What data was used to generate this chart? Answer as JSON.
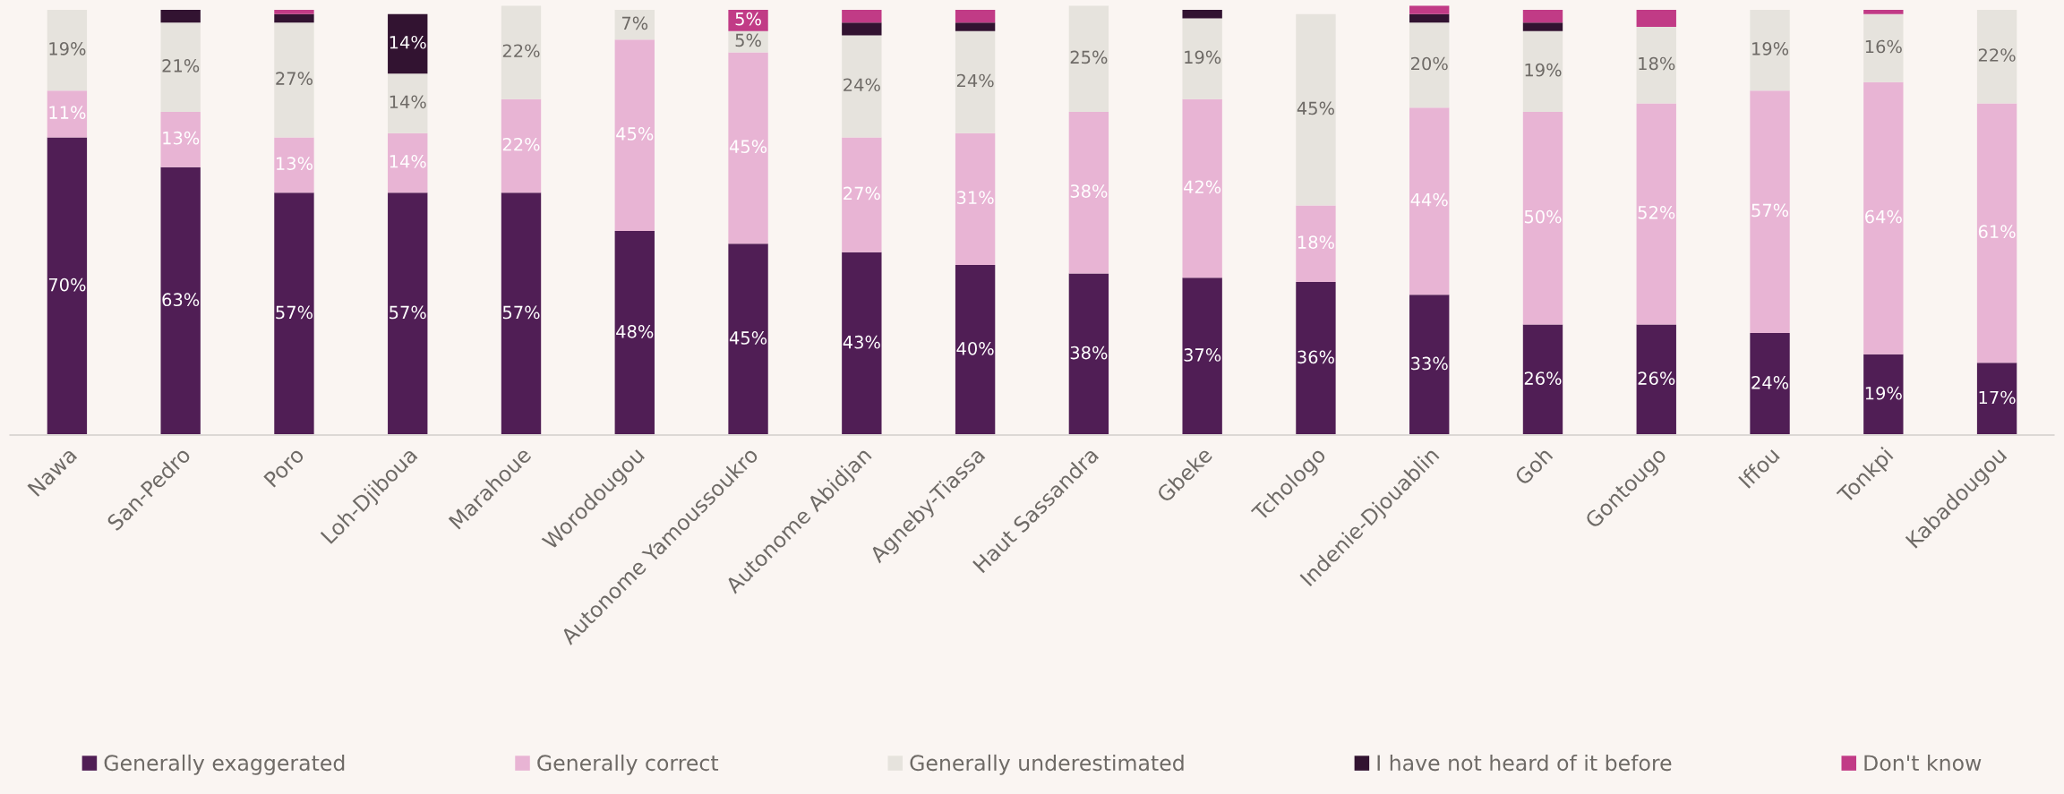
{
  "chart_data": {
    "type": "bar",
    "stacked": true,
    "legend": "bottom",
    "grid": false,
    "ylim": [
      0,
      101
    ],
    "categories": [
      "Nawa",
      "San-Pedro",
      "Poro",
      "Loh-Djiboua",
      "Marahoue",
      "Worodougou",
      "Autonome Yamoussoukro",
      "Autonome Abidjan",
      "Agneby-Tiassa",
      "Haut Sassandra",
      "Gbeke",
      "Tchologo",
      "Indenie-Djouablin",
      "Goh",
      "Gontougo",
      "Iffou",
      "Tonkpi",
      "Kabadougou"
    ],
    "series": [
      {
        "name": "Generally exaggerated",
        "color": "#501e55",
        "values": [
          70,
          63,
          57,
          57,
          57,
          48,
          45,
          43,
          40,
          38,
          37,
          36,
          33,
          26,
          26,
          24,
          19,
          17
        ],
        "value_labels": [
          "70%",
          "63%",
          "57%",
          "57%",
          "57%",
          "48%",
          "45%",
          "43%",
          "40%",
          "38%",
          "37%",
          "36%",
          "33%",
          "26%",
          "26%",
          "24%",
          "19%",
          "17%"
        ]
      },
      {
        "name": "Generally correct",
        "color": "#e8b4d4",
        "values": [
          11,
          13,
          13,
          14,
          22,
          45,
          45,
          27,
          31,
          38,
          42,
          18,
          44,
          50,
          52,
          57,
          64,
          61
        ],
        "value_labels": [
          "11%",
          "13%",
          "13%",
          "14%",
          "22%",
          "45%",
          "45%",
          "27%",
          "31%",
          "38%",
          "42%",
          "18%",
          "44%",
          "50%",
          "52%",
          "57%",
          "64%",
          "61%"
        ]
      },
      {
        "name": "Generally underestimated",
        "color": "#e6e3dd",
        "values": [
          19,
          21,
          27,
          14,
          22,
          7,
          5,
          24,
          24,
          25,
          19,
          45,
          20,
          19,
          18,
          19,
          16,
          22
        ],
        "value_labels": [
          "19%",
          "21%",
          "27%",
          "14%",
          "22%",
          "7%",
          "5%",
          "24%",
          "24%",
          "25%",
          "19%",
          "45%",
          "20%",
          "19%",
          "18%",
          "19%",
          "16%",
          "22%"
        ]
      },
      {
        "name": "I have not heard of it before",
        "color": "#321331",
        "values": [
          0,
          3,
          2,
          14,
          0,
          0,
          0,
          3,
          2,
          0,
          2,
          0,
          2,
          2,
          0,
          0,
          0,
          0
        ],
        "value_labels": [
          null,
          null,
          null,
          "14%",
          null,
          null,
          null,
          null,
          null,
          null,
          null,
          null,
          null,
          null,
          null,
          null,
          null,
          null
        ]
      },
      {
        "name": "Don't know",
        "color": "#c13b86",
        "values": [
          0,
          0,
          1,
          0,
          0,
          0,
          5,
          3,
          3,
          0,
          0,
          0,
          2,
          3,
          4,
          0,
          1,
          0
        ],
        "value_labels": [
          null,
          null,
          null,
          null,
          null,
          null,
          "5%",
          null,
          null,
          null,
          null,
          null,
          null,
          null,
          null,
          null,
          null,
          null
        ]
      }
    ]
  }
}
